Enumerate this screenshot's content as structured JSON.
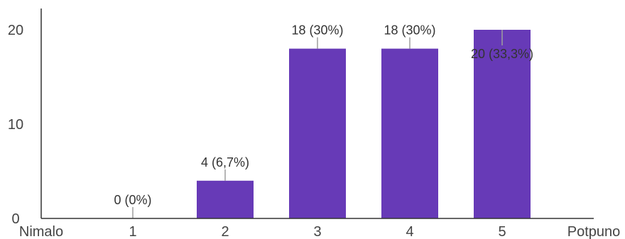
{
  "chart_data": {
    "type": "bar",
    "categories": [
      "1",
      "2",
      "3",
      "4",
      "5"
    ],
    "values": [
      0,
      4,
      18,
      18,
      20
    ],
    "data_labels": [
      "0 (0%)",
      "4 (6,7%)",
      "18 (30%)",
      "18 (30%)",
      "20 (33,3%)"
    ],
    "y_ticks": [
      "0",
      "10",
      "20"
    ],
    "ylim": [
      0,
      20
    ],
    "scale_min_label": "Nimalo",
    "scale_max_label": "Potpuno",
    "bar_color": "#673ab7",
    "axis_color": "#333333",
    "leader_color": "#9e9e9e",
    "grid": false
  }
}
